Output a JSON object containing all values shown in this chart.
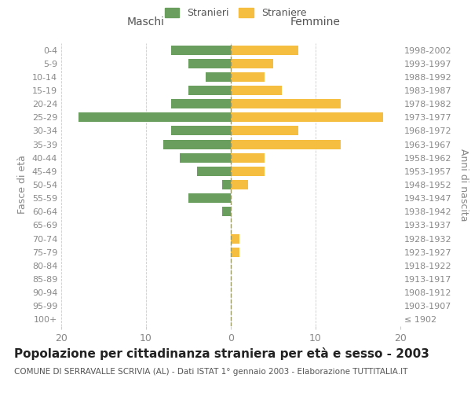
{
  "age_groups": [
    "100+",
    "95-99",
    "90-94",
    "85-89",
    "80-84",
    "75-79",
    "70-74",
    "65-69",
    "60-64",
    "55-59",
    "50-54",
    "45-49",
    "40-44",
    "35-39",
    "30-34",
    "25-29",
    "20-24",
    "15-19",
    "10-14",
    "5-9",
    "0-4"
  ],
  "birth_years": [
    "≤ 1902",
    "1903-1907",
    "1908-1912",
    "1913-1917",
    "1918-1922",
    "1923-1927",
    "1928-1932",
    "1933-1937",
    "1938-1942",
    "1943-1947",
    "1948-1952",
    "1953-1957",
    "1958-1962",
    "1963-1967",
    "1968-1972",
    "1973-1977",
    "1978-1982",
    "1983-1987",
    "1988-1992",
    "1993-1997",
    "1998-2002"
  ],
  "maschi": [
    0,
    0,
    0,
    0,
    0,
    0,
    0,
    0,
    1,
    5,
    1,
    4,
    6,
    8,
    7,
    18,
    7,
    5,
    3,
    5,
    7
  ],
  "femmine": [
    0,
    0,
    0,
    0,
    0,
    1,
    1,
    0,
    0,
    0,
    2,
    4,
    4,
    13,
    8,
    18,
    13,
    6,
    4,
    5,
    8
  ],
  "maschi_color": "#6a9e5e",
  "femmine_color": "#f5be41",
  "center_line_color": "#999966",
  "title": "Popolazione per cittadinanza straniera per età e sesso - 2003",
  "subtitle": "COMUNE DI SERRAVALLE SCRIVIA (AL) - Dati ISTAT 1° gennaio 2003 - Elaborazione TUTTITALIA.IT",
  "left_label": "Maschi",
  "right_label": "Femmine",
  "y_left_label": "Fasce di età",
  "y_right_label": "Anni di nascita",
  "legend_stranieri": "Stranieri",
  "legend_straniere": "Straniere",
  "xlim": 20,
  "background_color": "#ffffff",
  "grid_color": "#cccccc",
  "tick_color": "#888888",
  "title_fontsize": 11,
  "subtitle_fontsize": 7.5
}
